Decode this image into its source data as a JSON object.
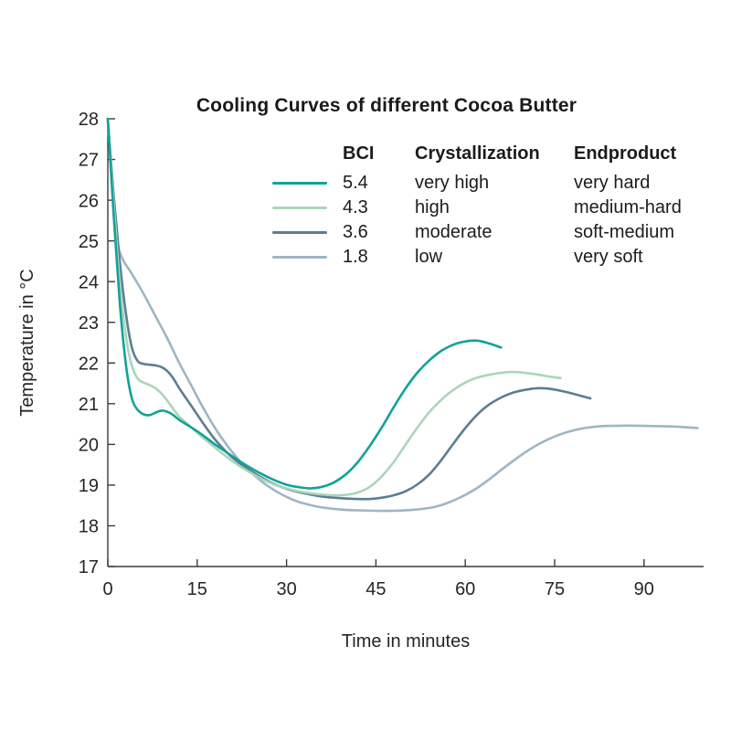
{
  "title": "Cooling Curves of different Cocoa Butter",
  "legend": {
    "headers": {
      "bci": "BCI",
      "crystallization": "Crystallization",
      "endproduct": "Endproduct"
    },
    "rows": [
      {
        "bci": "5.4",
        "crystallization": "very high",
        "endproduct": "very hard",
        "color": "#12a19b"
      },
      {
        "bci": "4.3",
        "crystallization": "high",
        "endproduct": "medium-hard",
        "color": "#a9d6b9"
      },
      {
        "bci": "3.6",
        "crystallization": "moderate",
        "endproduct": "soft-medium",
        "color": "#5b7e92"
      },
      {
        "bci": "1.8",
        "crystallization": "low",
        "endproduct": "very soft",
        "color": "#9eb5c3"
      }
    ]
  },
  "axes_style": {
    "axis_color": "#3a3a3a",
    "tick_label_color": "#262626",
    "label_color": "#262626"
  },
  "chart_data": {
    "type": "line",
    "title": "Cooling Curves of different Cocoa Butter",
    "xlabel": "Time in minutes",
    "ylabel": "Temperature in °C",
    "xlim": [
      0,
      100
    ],
    "ylim": [
      17,
      28
    ],
    "x_ticks": [
      0,
      15,
      30,
      45,
      60,
      75,
      90
    ],
    "y_ticks": [
      17,
      18,
      19,
      20,
      21,
      22,
      23,
      24,
      25,
      26,
      27,
      28
    ],
    "grid": false,
    "legend_position": "top-right-table",
    "series": [
      {
        "name": "BCI 5.4 (very high crystallization, very hard)",
        "color": "#12a19b",
        "points": [
          [
            0,
            28
          ],
          [
            1,
            25.6
          ],
          [
            2,
            23.5
          ],
          [
            3,
            22.0
          ],
          [
            4,
            21.15
          ],
          [
            5,
            20.85
          ],
          [
            6,
            20.74
          ],
          [
            7,
            20.72
          ],
          [
            8,
            20.78
          ],
          [
            9,
            20.83
          ],
          [
            10,
            20.8
          ],
          [
            11,
            20.72
          ],
          [
            12,
            20.6
          ],
          [
            14,
            20.42
          ],
          [
            16,
            20.22
          ],
          [
            18,
            20.0
          ],
          [
            20,
            19.8
          ],
          [
            22,
            19.6
          ],
          [
            24,
            19.42
          ],
          [
            26,
            19.26
          ],
          [
            28,
            19.12
          ],
          [
            30,
            19.01
          ],
          [
            32,
            18.95
          ],
          [
            34,
            18.92
          ],
          [
            36,
            18.96
          ],
          [
            38,
            19.07
          ],
          [
            40,
            19.27
          ],
          [
            42,
            19.57
          ],
          [
            44,
            19.97
          ],
          [
            46,
            20.42
          ],
          [
            48,
            20.92
          ],
          [
            50,
            21.38
          ],
          [
            52,
            21.77
          ],
          [
            54,
            22.07
          ],
          [
            56,
            22.3
          ],
          [
            58,
            22.45
          ],
          [
            60,
            22.53
          ],
          [
            62,
            22.55
          ],
          [
            64,
            22.48
          ],
          [
            66,
            22.38
          ]
        ]
      },
      {
        "name": "BCI 4.3 (high crystallization, medium-hard)",
        "color": "#a9d6b9",
        "points": [
          [
            0,
            28
          ],
          [
            1,
            25.9
          ],
          [
            2,
            24.0
          ],
          [
            3,
            22.7
          ],
          [
            4,
            21.95
          ],
          [
            5,
            21.62
          ],
          [
            6,
            21.52
          ],
          [
            7,
            21.46
          ],
          [
            8,
            21.38
          ],
          [
            9,
            21.25
          ],
          [
            10,
            21.07
          ],
          [
            11,
            20.87
          ],
          [
            12,
            20.68
          ],
          [
            14,
            20.42
          ],
          [
            16,
            20.16
          ],
          [
            18,
            19.92
          ],
          [
            20,
            19.69
          ],
          [
            22,
            19.48
          ],
          [
            24,
            19.3
          ],
          [
            26,
            19.14
          ],
          [
            28,
            19.01
          ],
          [
            30,
            18.92
          ],
          [
            32,
            18.85
          ],
          [
            34,
            18.8
          ],
          [
            36,
            18.77
          ],
          [
            38,
            18.75
          ],
          [
            40,
            18.76
          ],
          [
            42,
            18.82
          ],
          [
            44,
            18.96
          ],
          [
            46,
            19.22
          ],
          [
            48,
            19.57
          ],
          [
            50,
            20.0
          ],
          [
            52,
            20.42
          ],
          [
            54,
            20.8
          ],
          [
            56,
            21.1
          ],
          [
            58,
            21.34
          ],
          [
            60,
            21.52
          ],
          [
            62,
            21.64
          ],
          [
            64,
            21.71
          ],
          [
            66,
            21.76
          ],
          [
            68,
            21.78
          ],
          [
            70,
            21.76
          ],
          [
            72,
            21.72
          ],
          [
            74,
            21.67
          ],
          [
            76,
            21.63
          ]
        ]
      },
      {
        "name": "BCI 3.6 (moderate crystallization, soft-medium)",
        "color": "#5b7e92",
        "points": [
          [
            0,
            28
          ],
          [
            1,
            26.1
          ],
          [
            2,
            24.5
          ],
          [
            3,
            23.25
          ],
          [
            4,
            22.4
          ],
          [
            5,
            22.05
          ],
          [
            6,
            21.98
          ],
          [
            7,
            21.96
          ],
          [
            8,
            21.94
          ],
          [
            9,
            21.9
          ],
          [
            10,
            21.8
          ],
          [
            11,
            21.62
          ],
          [
            12,
            21.38
          ],
          [
            14,
            20.95
          ],
          [
            16,
            20.52
          ],
          [
            18,
            20.12
          ],
          [
            20,
            19.8
          ],
          [
            22,
            19.55
          ],
          [
            24,
            19.35
          ],
          [
            26,
            19.17
          ],
          [
            28,
            19.02
          ],
          [
            30,
            18.91
          ],
          [
            32,
            18.83
          ],
          [
            34,
            18.77
          ],
          [
            36,
            18.72
          ],
          [
            38,
            18.69
          ],
          [
            40,
            18.67
          ],
          [
            42,
            18.66
          ],
          [
            44,
            18.66
          ],
          [
            46,
            18.69
          ],
          [
            48,
            18.75
          ],
          [
            50,
            18.85
          ],
          [
            52,
            19.02
          ],
          [
            54,
            19.27
          ],
          [
            56,
            19.62
          ],
          [
            58,
            20.02
          ],
          [
            60,
            20.4
          ],
          [
            62,
            20.73
          ],
          [
            64,
            20.98
          ],
          [
            66,
            21.15
          ],
          [
            68,
            21.27
          ],
          [
            70,
            21.34
          ],
          [
            72,
            21.38
          ],
          [
            74,
            21.37
          ],
          [
            76,
            21.32
          ],
          [
            78,
            21.25
          ],
          [
            80,
            21.17
          ],
          [
            81,
            21.13
          ]
        ]
      },
      {
        "name": "BCI 1.8 (low crystallization, very soft)",
        "color": "#9eb5c3",
        "points": [
          [
            0,
            28
          ],
          [
            0.8,
            26.3
          ],
          [
            1.6,
            25.0
          ],
          [
            2.5,
            24.55
          ],
          [
            4,
            24.2
          ],
          [
            6,
            23.7
          ],
          [
            8,
            23.15
          ],
          [
            10,
            22.6
          ],
          [
            12,
            22.0
          ],
          [
            14,
            21.45
          ],
          [
            16,
            20.9
          ],
          [
            18,
            20.4
          ],
          [
            20,
            19.98
          ],
          [
            22,
            19.62
          ],
          [
            24,
            19.32
          ],
          [
            26,
            19.07
          ],
          [
            28,
            18.87
          ],
          [
            30,
            18.71
          ],
          [
            32,
            18.59
          ],
          [
            34,
            18.51
          ],
          [
            36,
            18.45
          ],
          [
            39,
            18.4
          ],
          [
            42,
            18.38
          ],
          [
            45,
            18.37
          ],
          [
            48,
            18.37
          ],
          [
            51,
            18.39
          ],
          [
            54,
            18.44
          ],
          [
            56,
            18.51
          ],
          [
            58,
            18.62
          ],
          [
            60,
            18.76
          ],
          [
            62,
            18.93
          ],
          [
            64,
            19.14
          ],
          [
            66,
            19.37
          ],
          [
            68,
            19.59
          ],
          [
            70,
            19.8
          ],
          [
            72,
            19.98
          ],
          [
            74,
            20.13
          ],
          [
            76,
            20.25
          ],
          [
            78,
            20.34
          ],
          [
            80,
            20.4
          ],
          [
            83,
            20.45
          ],
          [
            86,
            20.46
          ],
          [
            89,
            20.46
          ],
          [
            92,
            20.45
          ],
          [
            95,
            20.44
          ],
          [
            99,
            20.4
          ]
        ]
      }
    ]
  }
}
